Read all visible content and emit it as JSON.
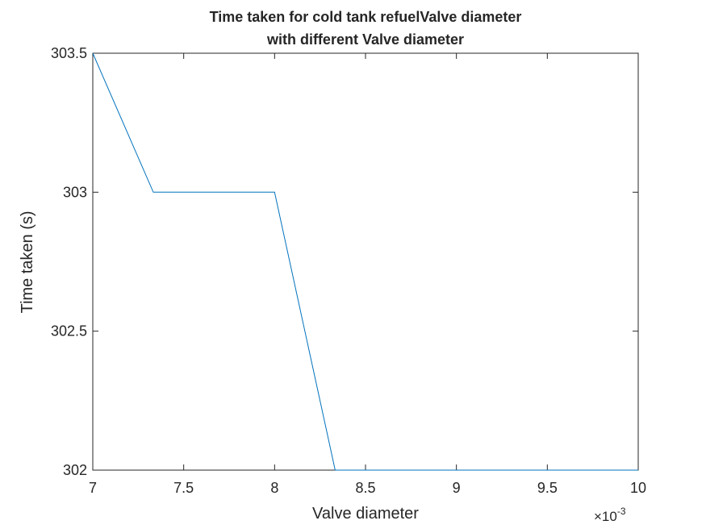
{
  "chart_data": {
    "type": "line",
    "title": [
      "Time taken for cold tank refuelValve diameter",
      "with different Valve diameter"
    ],
    "xlabel": "Valve diameter",
    "ylabel": "Time taken (s)",
    "x_exponent": {
      "base": "×10",
      "power": "-3"
    },
    "xlim": [
      7,
      10
    ],
    "ylim": [
      302,
      303.5
    ],
    "xticks": [
      7,
      7.5,
      8,
      8.5,
      9,
      9.5,
      10
    ],
    "xtick_labels": [
      "7",
      "7.5",
      "8",
      "8.5",
      "9",
      "9.5",
      "10"
    ],
    "yticks": [
      302,
      302.5,
      303,
      303.5
    ],
    "ytick_labels": [
      "302",
      "302.5",
      "303",
      "303.5"
    ],
    "grid": false,
    "series": [
      {
        "color": "#0072BD",
        "x": [
          7,
          7.333,
          7.667,
          8,
          8.333,
          8.667,
          9,
          9.333,
          9.667,
          10
        ],
        "y": [
          303.5,
          303,
          303,
          303,
          302,
          302,
          302,
          302,
          302,
          302
        ]
      }
    ]
  }
}
